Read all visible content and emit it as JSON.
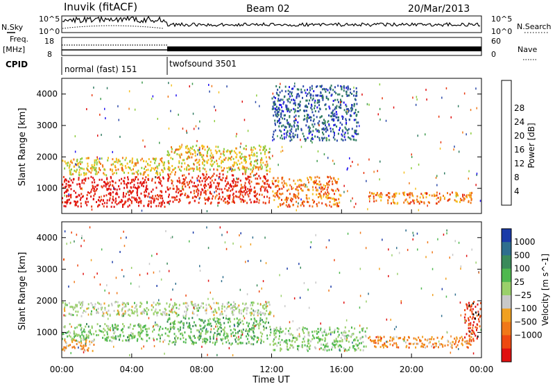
{
  "header": {
    "station": "Inuvik (fitACF)",
    "beam": "Beam 02",
    "date": "20/Mar/2013"
  },
  "strip_labels": {
    "nsky": "N.Sky",
    "nsky_ticks": [
      "10^5",
      "10^0"
    ],
    "nsearch": "N.Search",
    "nsearch_ticks": [
      "10^5",
      "10^0"
    ],
    "freq": "Freq.",
    "freq_unit": "[MHz]",
    "freq_ticks": [
      "18",
      "8"
    ],
    "nave": "Nave",
    "nave_ticks": [
      "60",
      "0"
    ],
    "cpid": "CPID",
    "cpid_modes": [
      "normal (fast) 151",
      "twofsound 3501"
    ]
  },
  "axes": {
    "ylabel": "Slant Range [km]",
    "xlabel": "Time UT",
    "xticks": [
      "00:00",
      "04:00",
      "08:00",
      "12:00",
      "16:00",
      "20:00",
      "00:00"
    ],
    "yticks": [
      "1000",
      "2000",
      "3000",
      "4000"
    ]
  },
  "colorbars": {
    "power": {
      "label": "Power [dB]",
      "ticks": [
        "4",
        "8",
        "12",
        "16",
        "20",
        "24",
        "28"
      ],
      "colors": [
        "#2010f0",
        "#2a48a8",
        "#2f7a60",
        "#3e9a4c",
        "#8ccc3c",
        "#f5c020",
        "#f07818",
        "#e83810",
        "#e01010"
      ]
    },
    "velocity": {
      "label": "Velocity [m s^-1]",
      "ticks": [
        "1000",
        "500",
        "100",
        "25",
        "−25",
        "−100",
        "−500",
        "−1000"
      ],
      "colors": [
        "#1a3aa8",
        "#2e6e8e",
        "#3a8a5a",
        "#4fb84f",
        "#9ad06a",
        "#c8c8c8",
        "#f0a020",
        "#f07818",
        "#ee4810",
        "#e01010"
      ]
    }
  },
  "chart_data": [
    {
      "type": "heatmap",
      "title": "Power",
      "xlabel": "Time UT",
      "ylabel": "Slant Range [km]",
      "xlim": [
        0,
        24
      ],
      "ylim": [
        200,
        4500
      ],
      "colorbar_range": [
        0,
        30
      ],
      "colorbar_label": "Power [dB]",
      "regions": [
        {
          "t": [
            0,
            6
          ],
          "r": [
            400,
            1400
          ],
          "value": 28
        },
        {
          "t": [
            0,
            6
          ],
          "r": [
            1400,
            2000
          ],
          "value": 18
        },
        {
          "t": [
            6,
            12
          ],
          "r": [
            500,
            1500
          ],
          "value": 26
        },
        {
          "t": [
            6,
            12
          ],
          "r": [
            1500,
            2400
          ],
          "value": 18
        },
        {
          "t": [
            12,
            16
          ],
          "r": [
            400,
            1400
          ],
          "value": 22
        },
        {
          "t": [
            12,
            17
          ],
          "r": [
            2500,
            4300
          ],
          "value": 6
        },
        {
          "t": [
            17.5,
            23.5
          ],
          "r": [
            500,
            900
          ],
          "value": 22
        }
      ]
    },
    {
      "type": "heatmap",
      "title": "Velocity",
      "xlabel": "Time UT",
      "ylabel": "Slant Range [km]",
      "xlim": [
        0,
        24
      ],
      "ylim": [
        200,
        4500
      ],
      "colorbar_range": [
        -1000,
        1000
      ],
      "colorbar_label": "Velocity [m s^-1]",
      "regions": [
        {
          "t": [
            0,
            6
          ],
          "r": [
            700,
            1300
          ],
          "value": 200
        },
        {
          "t": [
            0,
            2
          ],
          "r": [
            400,
            800
          ],
          "value": -300
        },
        {
          "t": [
            0,
            12
          ],
          "r": [
            1500,
            2000
          ],
          "value": 0
        },
        {
          "t": [
            6,
            12
          ],
          "r": [
            600,
            1500
          ],
          "value": 250
        },
        {
          "t": [
            12,
            17.5
          ],
          "r": [
            400,
            1200
          ],
          "value": 150
        },
        {
          "t": [
            17.5,
            23.5
          ],
          "r": [
            500,
            900
          ],
          "value": -400
        },
        {
          "t": [
            23,
            24
          ],
          "r": [
            700,
            2000
          ],
          "value": -800
        }
      ]
    }
  ]
}
